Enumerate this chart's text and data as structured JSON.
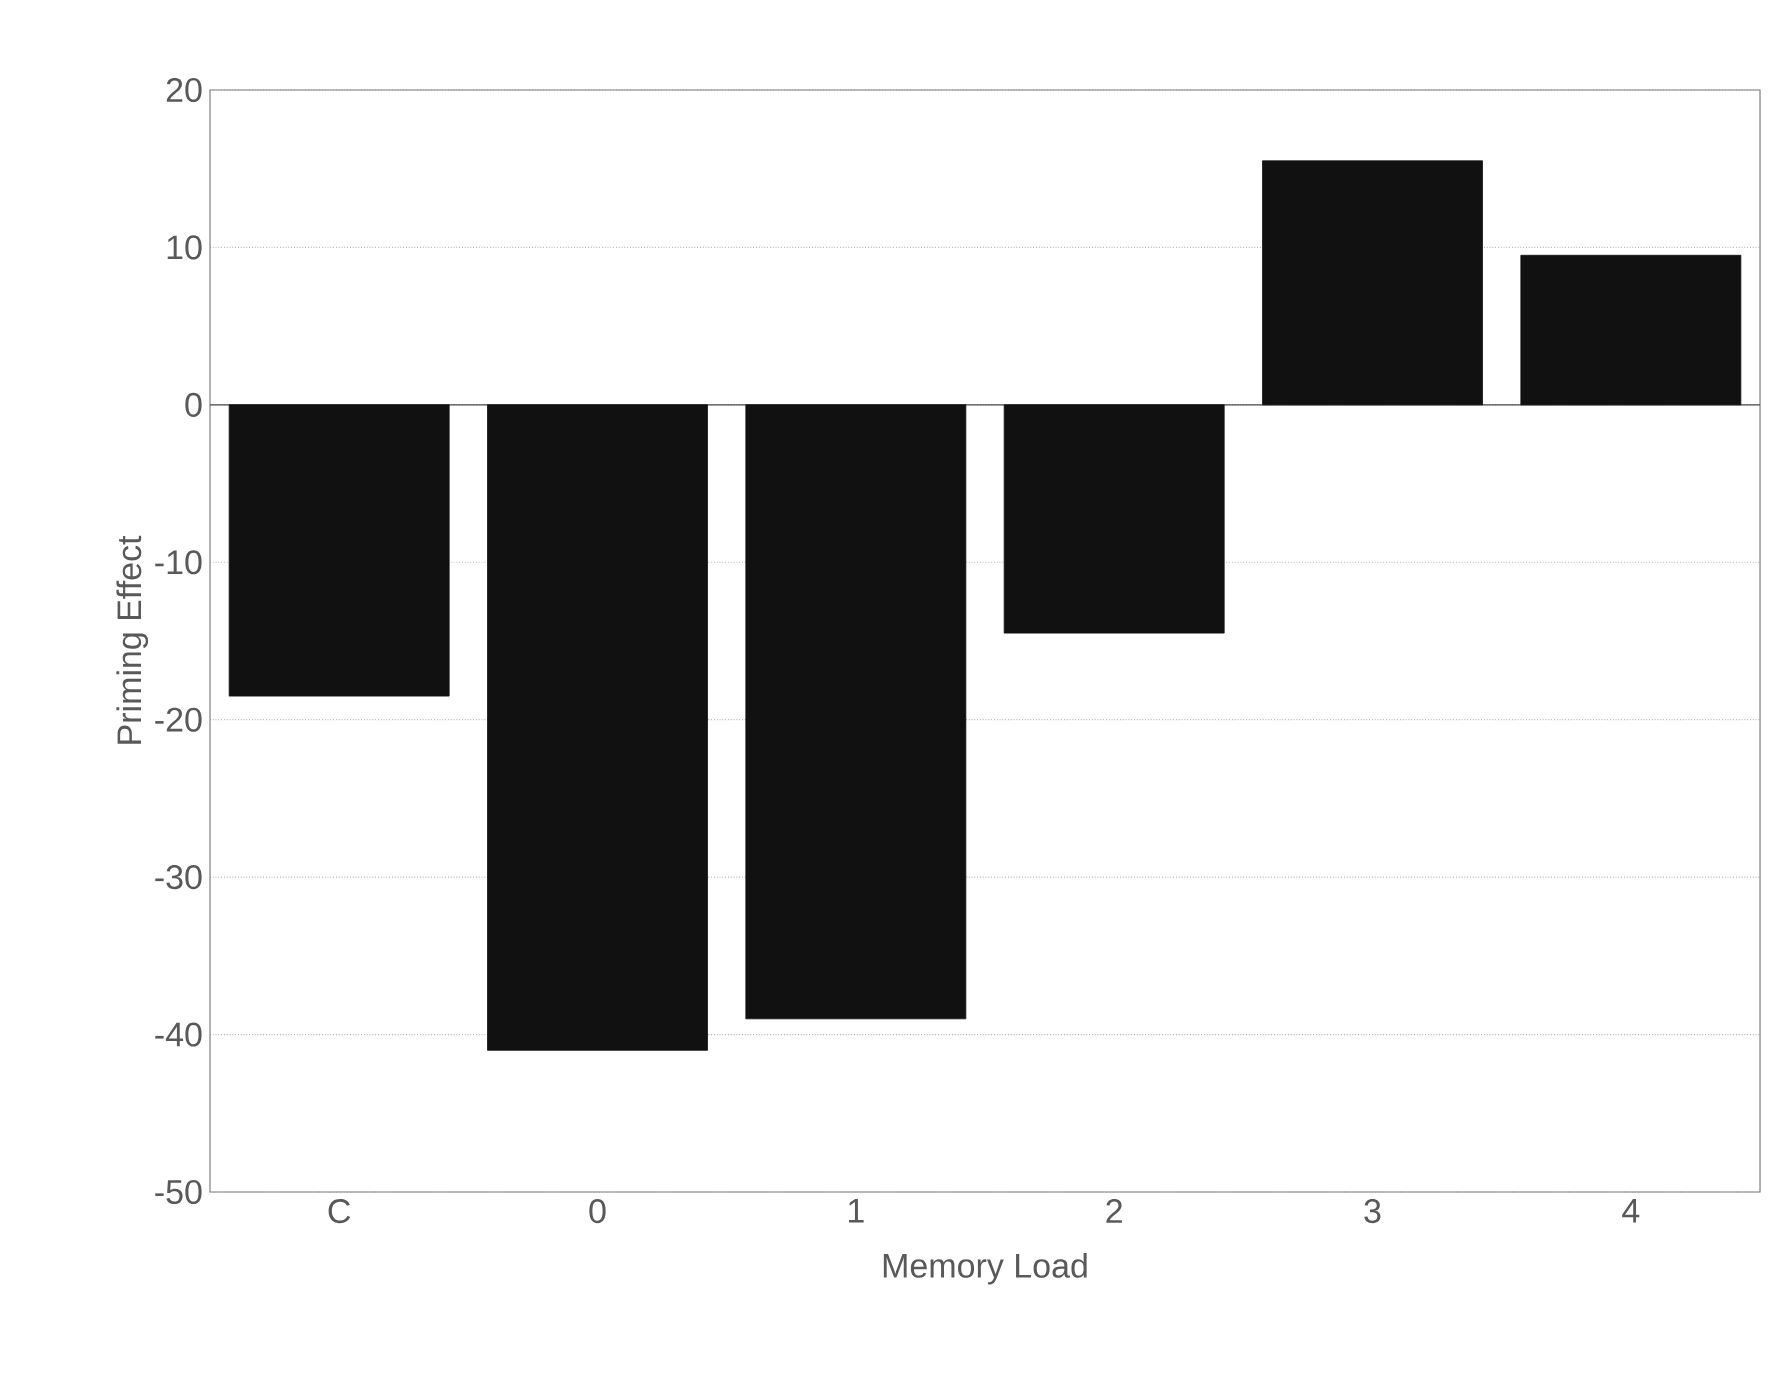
{
  "chart_data": {
    "type": "bar",
    "xlabel": "Memory Load",
    "ylabel": "Priming Effect",
    "categories": [
      "C",
      "0",
      "1",
      "2",
      "3",
      "4"
    ],
    "values": [
      -18.5,
      -41,
      -39,
      -14.5,
      15.5,
      9.5
    ],
    "color": "#111111",
    "ylim": [
      -50,
      20
    ],
    "yticks": [
      -50,
      -40,
      -30,
      -20,
      -10,
      0,
      10,
      20
    ],
    "grid": "y",
    "ref_lines": [
      {
        "axis": "y",
        "value": 0,
        "line_style": "solid"
      }
    ]
  }
}
